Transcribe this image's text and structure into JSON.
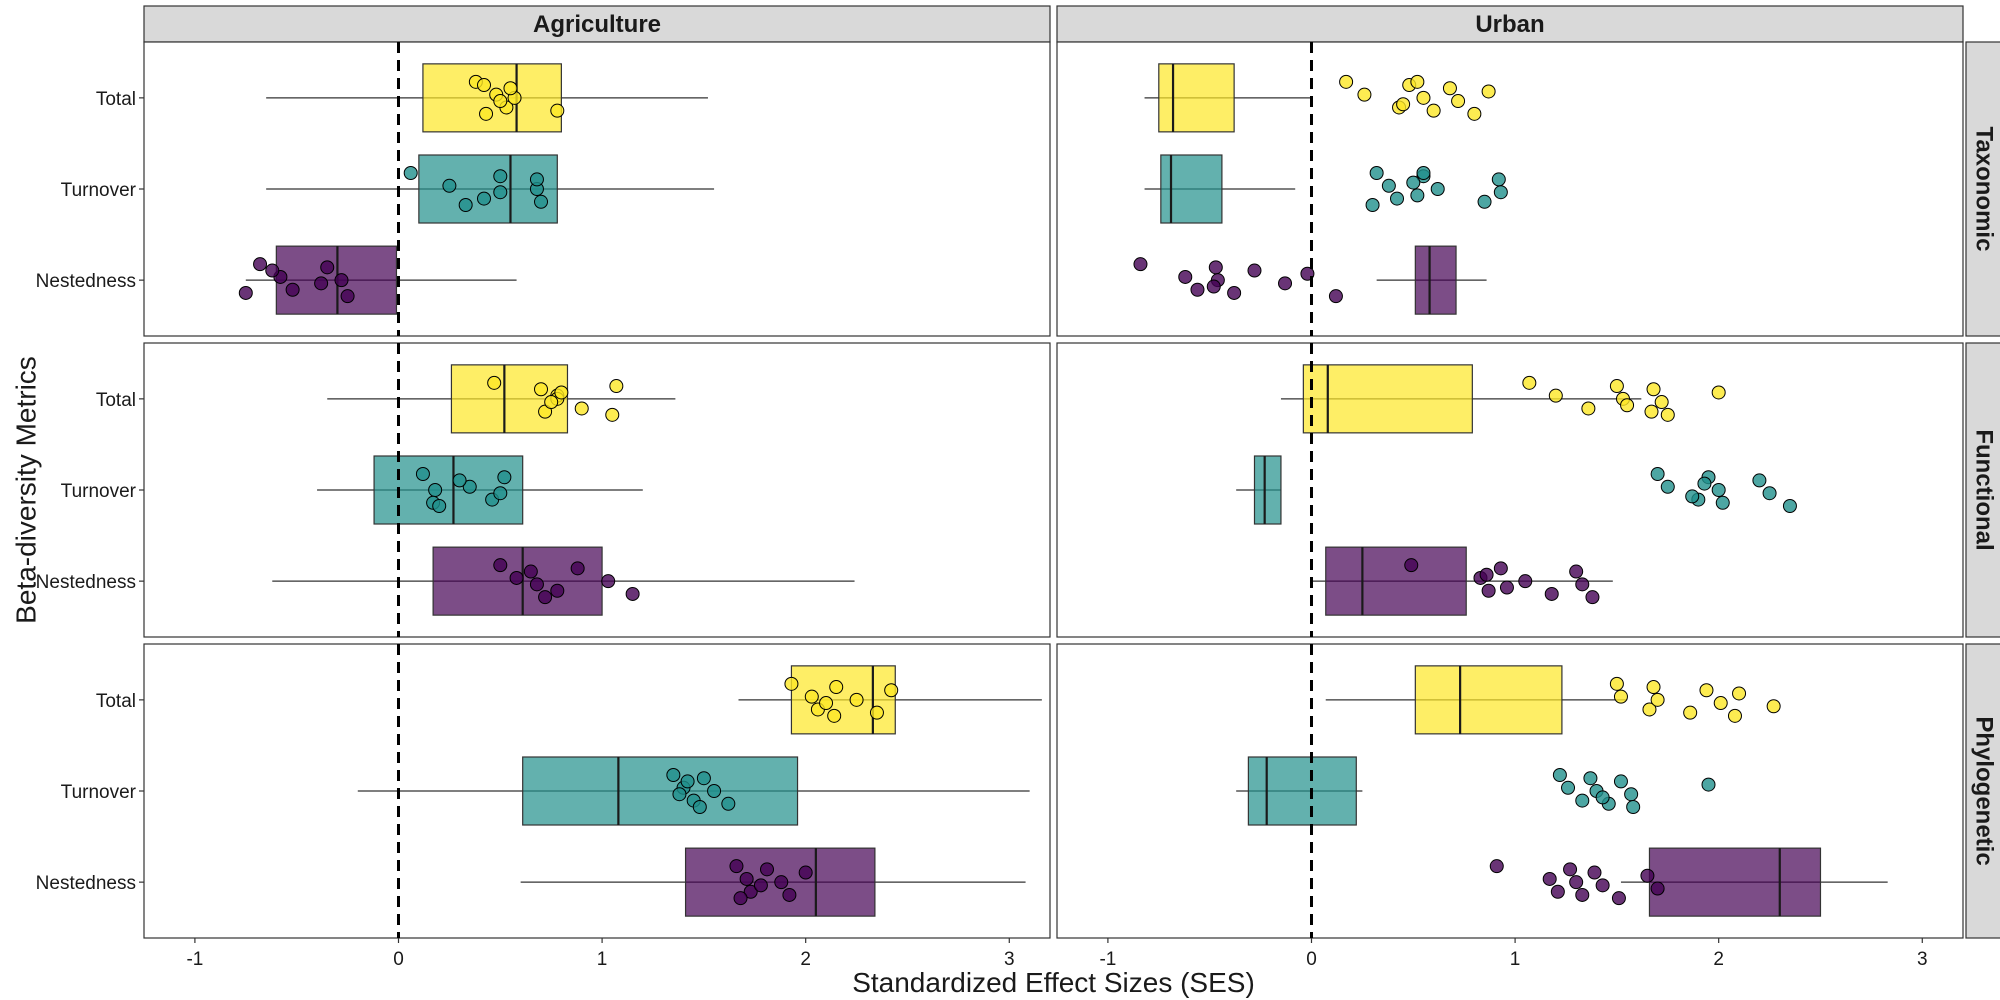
{
  "chart_data": {
    "type": "boxplot",
    "xlabel": "Standardized Effect Sizes (SES)",
    "ylabel": "Beta-diversity Metrics",
    "columns": [
      "Agriculture",
      "Urban"
    ],
    "rows": [
      "Taxonomic",
      "Functional",
      "Phylogenetic"
    ],
    "categories": [
      "Total",
      "Turnover",
      "Nestedness"
    ],
    "xlim": [
      -1.25,
      3.2
    ],
    "xticks": [
      "-1",
      "0",
      "1",
      "2",
      "3"
    ],
    "reference_line_x": 0,
    "colors": {
      "Total": "#FDE725",
      "Turnover": "#21908C",
      "Nestedness": "#440154"
    },
    "panels": [
      {
        "column": "Agriculture",
        "row": "Taxonomic",
        "boxes": [
          {
            "category": "Total",
            "box": [
              -0.65,
              0.12,
              0.58,
              0.8,
              1.52
            ],
            "points": [
              0.38,
              0.48,
              0.53,
              0.42,
              0.57,
              0.78,
              0.55,
              0.5,
              0.43
            ]
          },
          {
            "category": "Turnover",
            "box": [
              -0.65,
              0.1,
              0.55,
              0.78,
              1.55
            ],
            "points": [
              0.06,
              0.25,
              0.42,
              0.5,
              0.68,
              0.7,
              0.68,
              0.5,
              0.33
            ]
          },
          {
            "category": "Nestedness",
            "box": [
              -0.75,
              -0.6,
              -0.3,
              -0.01,
              0.58
            ],
            "points": [
              -0.68,
              -0.58,
              -0.52,
              -0.35,
              -0.28,
              -0.75,
              -0.62,
              -0.38,
              -0.25
            ]
          }
        ]
      },
      {
        "column": "Agriculture",
        "row": "Functional",
        "boxes": [
          {
            "category": "Total",
            "box": [
              -0.35,
              0.26,
              0.52,
              0.83,
              1.36
            ],
            "points": [
              0.47,
              0.78,
              0.9,
              1.07,
              0.78,
              0.72,
              0.7,
              0.75,
              1.05,
              0.8
            ]
          },
          {
            "category": "Turnover",
            "box": [
              -0.4,
              -0.12,
              0.27,
              0.61,
              1.2
            ],
            "points": [
              0.12,
              0.35,
              0.46,
              0.52,
              0.18,
              0.17,
              0.3,
              0.5,
              0.2
            ]
          },
          {
            "category": "Nestedness",
            "box": [
              -0.62,
              0.17,
              0.61,
              1.0,
              2.24
            ],
            "points": [
              0.5,
              0.58,
              0.78,
              0.88,
              1.03,
              1.15,
              0.65,
              0.68,
              0.72
            ]
          }
        ]
      },
      {
        "column": "Agriculture",
        "row": "Phylogenetic",
        "boxes": [
          {
            "category": "Total",
            "box": [
              1.67,
              1.93,
              2.33,
              2.44,
              3.16
            ],
            "points": [
              1.93,
              2.03,
              2.06,
              2.15,
              2.25,
              2.35,
              2.42,
              2.1,
              2.14
            ]
          },
          {
            "category": "Turnover",
            "box": [
              -0.2,
              0.61,
              1.08,
              1.96,
              3.1
            ],
            "points": [
              1.35,
              1.4,
              1.45,
              1.5,
              1.55,
              1.62,
              1.42,
              1.38,
              1.48
            ]
          },
          {
            "category": "Nestedness",
            "box": [
              0.6,
              1.41,
              2.05,
              2.34,
              3.08
            ],
            "points": [
              1.66,
              1.71,
              1.73,
              1.81,
              1.88,
              1.92,
              2.0,
              1.78,
              1.68
            ]
          }
        ]
      },
      {
        "column": "Urban",
        "row": "Taxonomic",
        "boxes": [
          {
            "category": "Total",
            "box": [
              -0.82,
              -0.75,
              -0.68,
              -0.38,
              0.0
            ],
            "points": [
              0.17,
              0.26,
              0.43,
              0.48,
              0.55,
              0.6,
              0.68,
              0.72,
              0.8,
              0.87,
              0.45,
              0.52
            ]
          },
          {
            "category": "Turnover",
            "box": [
              -0.82,
              -0.74,
              -0.69,
              -0.44,
              -0.08
            ],
            "points": [
              0.32,
              0.38,
              0.42,
              0.55,
              0.62,
              0.85,
              0.92,
              0.93,
              0.3,
              0.5,
              0.52,
              0.55
            ]
          },
          {
            "category": "Nestedness",
            "box": [
              0.32,
              0.51,
              0.58,
              0.71,
              0.86
            ],
            "points": [
              -0.84,
              -0.62,
              -0.56,
              -0.47,
              -0.46,
              -0.38,
              -0.28,
              -0.13,
              0.12,
              -0.02,
              -0.48
            ]
          }
        ]
      },
      {
        "column": "Urban",
        "row": "Functional",
        "boxes": [
          {
            "category": "Total",
            "box": [
              -0.15,
              -0.04,
              0.08,
              0.79,
              1.62
            ],
            "points": [
              1.07,
              1.2,
              1.36,
              1.5,
              1.53,
              1.67,
              1.68,
              1.72,
              1.75,
              2.0,
              1.55
            ]
          },
          {
            "category": "Turnover",
            "box": [
              -0.37,
              -0.28,
              -0.23,
              -0.15,
              -0.15
            ],
            "points": [
              1.7,
              1.75,
              1.9,
              1.95,
              2.0,
              2.02,
              2.2,
              2.25,
              2.35,
              1.93,
              1.87
            ]
          },
          {
            "category": "Nestedness",
            "box": [
              0.0,
              0.07,
              0.25,
              0.76,
              1.48
            ],
            "points": [
              0.49,
              0.83,
              0.87,
              0.93,
              1.05,
              1.18,
              1.3,
              1.33,
              1.38,
              0.86,
              0.96
            ]
          }
        ]
      },
      {
        "column": "Urban",
        "row": "Phylogenetic",
        "boxes": [
          {
            "category": "Total",
            "box": [
              0.07,
              0.51,
              0.73,
              1.23,
              1.55
            ],
            "points": [
              1.5,
              1.52,
              1.66,
              1.68,
              1.7,
              1.86,
              1.94,
              2.01,
              2.08,
              2.1,
              2.27
            ]
          },
          {
            "category": "Turnover",
            "box": [
              -0.37,
              -0.31,
              -0.22,
              0.22,
              0.25
            ],
            "points": [
              1.22,
              1.26,
              1.33,
              1.37,
              1.4,
              1.46,
              1.52,
              1.57,
              1.58,
              1.95,
              1.43
            ]
          },
          {
            "category": "Nestedness",
            "box": [
              1.52,
              1.66,
              2.3,
              2.5,
              2.83
            ],
            "points": [
              0.91,
              1.17,
              1.21,
              1.27,
              1.3,
              1.33,
              1.39,
              1.43,
              1.51,
              1.65,
              1.7
            ]
          }
        ]
      }
    ]
  }
}
